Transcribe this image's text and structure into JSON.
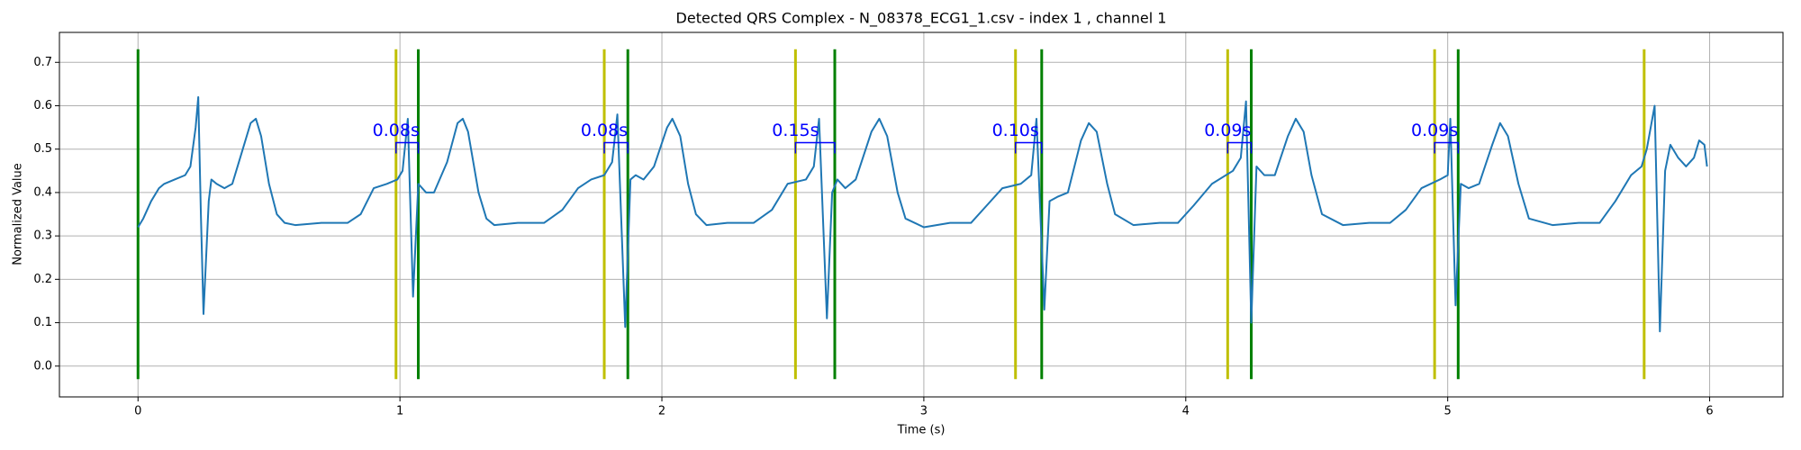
{
  "chart_data": {
    "type": "line",
    "title": "Detected QRS Complex - N_08378_ECG1_1.csv - index 1 , channel 1",
    "xlabel": "Time (s)",
    "ylabel": "Normalized Value",
    "xlim": [
      -0.3,
      6.28
    ],
    "ylim": [
      -0.071,
      0.769
    ],
    "xticks": [
      0,
      1,
      2,
      3,
      4,
      5,
      6
    ],
    "yticks": [
      {
        "value": 0,
        "label": "0.0"
      },
      0.1,
      0.2,
      0.3,
      0.4,
      0.5,
      0.6,
      0.7
    ],
    "grid": true,
    "series": [
      {
        "color": "#1f77b4",
        "x": [
          0,
          0.02,
          0.05,
          0.08,
          0.1,
          0.14,
          0.18,
          0.2,
          0.22,
          0.23,
          0.24,
          0.25,
          0.27,
          0.28,
          0.3,
          0.33,
          0.36,
          0.4,
          0.43,
          0.45,
          0.47,
          0.5,
          0.53,
          0.56,
          0.6,
          0.7,
          0.8,
          0.85,
          0.9,
          0.95,
          0.99,
          1.01,
          1.03,
          1.05,
          1.07,
          1.1,
          1.13,
          1.18,
          1.22,
          1.24,
          1.26,
          1.3,
          1.33,
          1.36,
          1.45,
          1.55,
          1.62,
          1.68,
          1.73,
          1.78,
          1.81,
          1.83,
          1.86,
          1.88,
          1.9,
          1.93,
          1.97,
          2.02,
          2.04,
          2.07,
          2.1,
          2.13,
          2.17,
          2.25,
          2.35,
          2.42,
          2.48,
          2.55,
          2.58,
          2.6,
          2.63,
          2.65,
          2.67,
          2.7,
          2.74,
          2.8,
          2.83,
          2.86,
          2.9,
          2.93,
          3.0,
          3.1,
          3.18,
          3.24,
          3.3,
          3.37,
          3.41,
          3.43,
          3.46,
          3.48,
          3.51,
          3.55,
          3.6,
          3.63,
          3.66,
          3.7,
          3.73,
          3.8,
          3.9,
          3.97,
          4.03,
          4.1,
          4.18,
          4.21,
          4.23,
          4.25,
          4.27,
          4.3,
          4.34,
          4.39,
          4.42,
          4.45,
          4.48,
          4.52,
          4.6,
          4.7,
          4.78,
          4.84,
          4.9,
          4.97,
          5.0,
          5.01,
          5.03,
          5.05,
          5.08,
          5.12,
          5.17,
          5.2,
          5.23,
          5.27,
          5.31,
          5.4,
          5.5,
          5.58,
          5.64,
          5.7,
          5.74,
          5.76,
          5.79,
          5.81,
          5.83,
          5.85,
          5.88,
          5.91,
          5.94,
          5.96,
          5.98,
          5.99
        ],
        "y": [
          0.32,
          0.34,
          0.38,
          0.41,
          0.42,
          0.43,
          0.44,
          0.46,
          0.55,
          0.62,
          0.35,
          0.12,
          0.38,
          0.43,
          0.42,
          0.41,
          0.42,
          0.5,
          0.56,
          0.57,
          0.53,
          0.42,
          0.35,
          0.33,
          0.325,
          0.33,
          0.33,
          0.35,
          0.41,
          0.42,
          0.43,
          0.45,
          0.57,
          0.16,
          0.42,
          0.4,
          0.4,
          0.47,
          0.56,
          0.57,
          0.54,
          0.4,
          0.34,
          0.325,
          0.33,
          0.33,
          0.36,
          0.41,
          0.43,
          0.44,
          0.47,
          0.58,
          0.09,
          0.43,
          0.44,
          0.43,
          0.46,
          0.55,
          0.57,
          0.53,
          0.42,
          0.35,
          0.325,
          0.33,
          0.33,
          0.36,
          0.42,
          0.43,
          0.46,
          0.57,
          0.11,
          0.4,
          0.43,
          0.41,
          0.43,
          0.54,
          0.57,
          0.53,
          0.4,
          0.34,
          0.32,
          0.33,
          0.33,
          0.37,
          0.41,
          0.42,
          0.44,
          0.57,
          0.13,
          0.38,
          0.39,
          0.4,
          0.52,
          0.56,
          0.54,
          0.42,
          0.35,
          0.325,
          0.33,
          0.33,
          0.37,
          0.42,
          0.45,
          0.48,
          0.61,
          0.1,
          0.46,
          0.44,
          0.44,
          0.53,
          0.57,
          0.54,
          0.44,
          0.35,
          0.325,
          0.33,
          0.33,
          0.36,
          0.41,
          0.43,
          0.44,
          0.57,
          0.14,
          0.42,
          0.41,
          0.42,
          0.51,
          0.56,
          0.53,
          0.42,
          0.34,
          0.325,
          0.33,
          0.33,
          0.38,
          0.44,
          0.46,
          0.5,
          0.6,
          0.08,
          0.45,
          0.51,
          0.48,
          0.46,
          0.48,
          0.52,
          0.51,
          0.46
        ]
      }
    ],
    "vline_span": [
      -0.03,
      0.73
    ],
    "onsets": {
      "color": "#bfbf00",
      "x": [
        0.985,
        1.78,
        2.51,
        3.35,
        4.16,
        4.95,
        5.75
      ]
    },
    "offsets": {
      "color": "#008000",
      "x": [
        0,
        1.07,
        1.87,
        2.66,
        3.45,
        4.25,
        5.04
      ]
    },
    "bracket_y": 0.515,
    "annotation_color": "#0000ff",
    "annotations": [
      {
        "label": "0.08s",
        "start": 0.985,
        "end": 1.07
      },
      {
        "label": "0.08s",
        "start": 1.78,
        "end": 1.87
      },
      {
        "label": "0.15s",
        "start": 2.51,
        "end": 2.66
      },
      {
        "label": "0.10s",
        "start": 3.35,
        "end": 3.45
      },
      {
        "label": "0.09s",
        "start": 4.16,
        "end": 4.25
      },
      {
        "label": "0.09s",
        "start": 4.95,
        "end": 5.04
      }
    ]
  }
}
